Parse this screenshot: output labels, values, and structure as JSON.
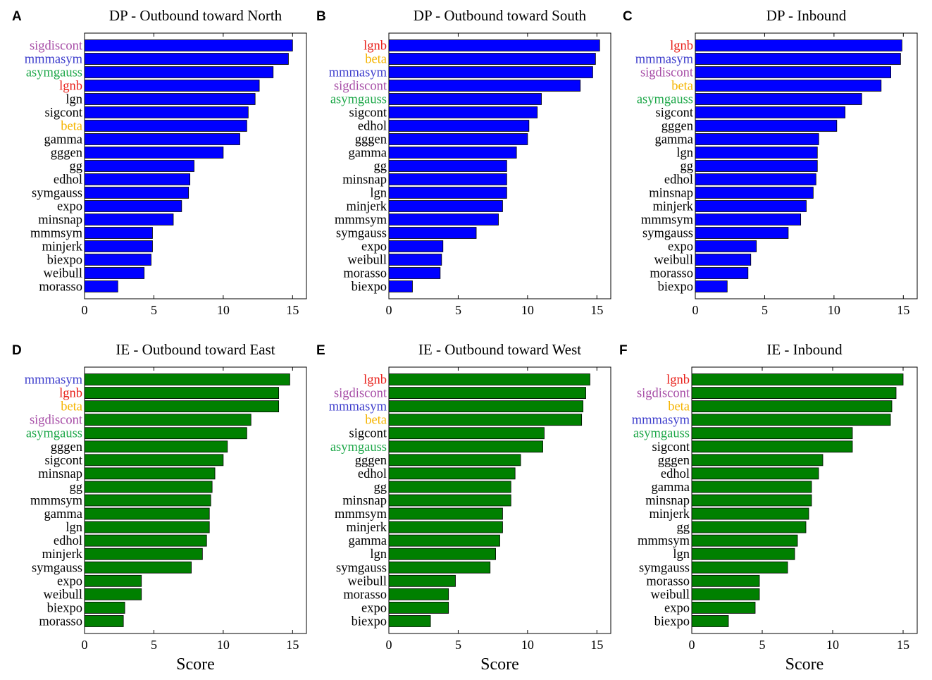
{
  "axis_title": "Score",
  "colors": {
    "dp_bar": "#0000FF",
    "ie_bar": "#008000",
    "bar_edge": "#000000",
    "default_label": "#000000",
    "highlight": {
      "sigdiscont": "#A64CA6",
      "mmmasym": "#3D3DCC",
      "asymgauss": "#1FA84A",
      "lgnb": "#E8201A",
      "beta": "#F5B400"
    }
  },
  "chart_data": [
    {
      "type": "bar",
      "orientation": "horizontal",
      "letter": "A",
      "title": "DP - Outbound  toward North",
      "group": "dp",
      "xlabel": "",
      "xlim": [
        0,
        16
      ],
      "xticks": [
        0,
        5,
        10,
        15
      ],
      "categories": [
        "sigdiscont",
        "mmmasym",
        "asymgauss",
        "lgnb",
        "lgn",
        "sigcont",
        "beta",
        "gamma",
        "gggen",
        "gg",
        "edhol",
        "symgauss",
        "expo",
        "minsnap",
        "mmmsym",
        "minjerk",
        "biexpo",
        "weibull",
        "morasso"
      ],
      "values": [
        15.0,
        14.7,
        13.6,
        12.6,
        12.3,
        11.8,
        11.7,
        11.2,
        10.0,
        7.9,
        7.6,
        7.5,
        7.0,
        6.4,
        4.9,
        4.9,
        4.8,
        4.3,
        2.4
      ]
    },
    {
      "type": "bar",
      "orientation": "horizontal",
      "letter": "B",
      "title": "DP - Outbound toward South",
      "group": "dp",
      "xlabel": "",
      "xlim": [
        0,
        16
      ],
      "xticks": [
        0,
        5,
        10,
        15
      ],
      "categories": [
        "lgnb",
        "beta",
        "mmmasym",
        "sigdiscont",
        "asymgauss",
        "sigcont",
        "edhol",
        "gggen",
        "gamma",
        "gg",
        "minsnap",
        "lgn",
        "minjerk",
        "mmmsym",
        "symgauss",
        "expo",
        "weibull",
        "morasso",
        "biexpo"
      ],
      "values": [
        15.2,
        14.9,
        14.7,
        13.8,
        11.0,
        10.7,
        10.1,
        10.0,
        9.2,
        8.5,
        8.5,
        8.5,
        8.2,
        7.9,
        6.3,
        3.9,
        3.8,
        3.7,
        1.7
      ]
    },
    {
      "type": "bar",
      "orientation": "horizontal",
      "letter": "C",
      "title": "DP - Inbound",
      "group": "dp",
      "xlabel": "",
      "xlim": [
        0,
        16
      ],
      "xticks": [
        0,
        5,
        10,
        15
      ],
      "categories": [
        "lgnb",
        "mmmasym",
        "sigdiscont",
        "beta",
        "asymgauss",
        "sigcont",
        "gggen",
        "gamma",
        "lgn",
        "gg",
        "edhol",
        "minsnap",
        "minjerk",
        "mmmsym",
        "symgauss",
        "expo",
        "weibull",
        "morasso",
        "biexpo"
      ],
      "values": [
        14.9,
        14.8,
        14.1,
        13.4,
        12.0,
        10.8,
        10.2,
        8.9,
        8.8,
        8.8,
        8.7,
        8.5,
        8.0,
        7.6,
        6.7,
        4.4,
        4.0,
        3.8,
        2.3
      ]
    },
    {
      "type": "bar",
      "orientation": "horizontal",
      "letter": "D",
      "title": "IE - Outbound toward East",
      "group": "ie",
      "xlabel": "Score",
      "xlim": [
        0,
        16
      ],
      "xticks": [
        0,
        5,
        10,
        15
      ],
      "categories": [
        "mmmasym",
        "lgnb",
        "beta",
        "sigdiscont",
        "asymgauss",
        "gggen",
        "sigcont",
        "minsnap",
        "gg",
        "mmmsym",
        "gamma",
        "lgn",
        "edhol",
        "minjerk",
        "symgauss",
        "expo",
        "weibull",
        "biexpo",
        "morasso"
      ],
      "values": [
        14.8,
        14.0,
        14.0,
        12.0,
        11.7,
        10.3,
        10.0,
        9.4,
        9.2,
        9.1,
        9.0,
        9.0,
        8.8,
        8.5,
        7.7,
        4.1,
        4.1,
        2.9,
        2.8
      ]
    },
    {
      "type": "bar",
      "orientation": "horizontal",
      "letter": "E",
      "title": "IE - Outbound toward West",
      "group": "ie",
      "xlabel": "Score",
      "xlim": [
        0,
        16
      ],
      "xticks": [
        0,
        5,
        10,
        15
      ],
      "categories": [
        "lgnb",
        "sigdiscont",
        "mmmasym",
        "beta",
        "sigcont",
        "asymgauss",
        "gggen",
        "edhol",
        "gg",
        "minsnap",
        "mmmsym",
        "minjerk",
        "gamma",
        "lgn",
        "symgauss",
        "weibull",
        "morasso",
        "expo",
        "biexpo"
      ],
      "values": [
        14.5,
        14.2,
        14.0,
        13.9,
        11.2,
        11.1,
        9.5,
        9.1,
        8.8,
        8.8,
        8.2,
        8.2,
        8.0,
        7.7,
        7.3,
        4.8,
        4.3,
        4.3,
        3.0
      ]
    },
    {
      "type": "bar",
      "orientation": "horizontal",
      "letter": "F",
      "title": "IE - Inbound",
      "group": "ie",
      "xlabel": "Score",
      "xlim": [
        0,
        16
      ],
      "xticks": [
        0,
        5,
        10,
        15
      ],
      "categories": [
        "lgnb",
        "sigdiscont",
        "beta",
        "mmmasym",
        "asymgauss",
        "sigcont",
        "gggen",
        "edhol",
        "gamma",
        "minsnap",
        "minjerk",
        "gg",
        "mmmsym",
        "lgn",
        "symgauss",
        "morasso",
        "weibull",
        "expo",
        "biexpo"
      ],
      "values": [
        15.0,
        14.5,
        14.2,
        14.1,
        11.4,
        11.4,
        9.3,
        9.0,
        8.5,
        8.5,
        8.3,
        8.1,
        7.5,
        7.3,
        6.8,
        4.8,
        4.8,
        4.5,
        2.6
      ]
    }
  ]
}
